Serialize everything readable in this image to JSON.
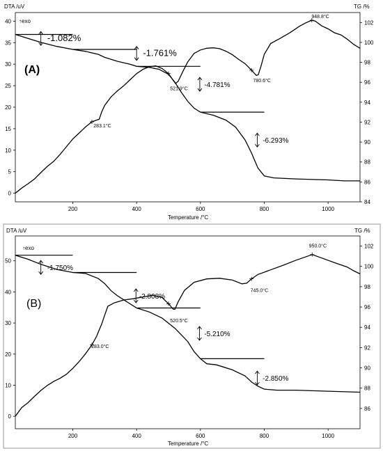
{
  "chart_data": [
    {
      "type": "line",
      "panel_label": "(A)",
      "exo_label": "↑exo",
      "left_axis_label": "DTA /uV",
      "right_axis_label": "TG /%",
      "xlabel": "Temperature /°C",
      "xlim": [
        20,
        1100
      ],
      "ylim_left": [
        -2,
        42
      ],
      "ylim_right": [
        84,
        103
      ],
      "xticks": [
        200,
        400,
        600,
        800,
        1000
      ],
      "yticks_left": [
        0,
        5,
        10,
        15,
        20,
        25,
        30,
        35,
        40
      ],
      "yticks_right": [
        84,
        86,
        88,
        90,
        92,
        94,
        96,
        98,
        100,
        102
      ],
      "series": [
        {
          "role": "DTA",
          "axis": "left",
          "points": [
            [
              20,
              0
            ],
            [
              40,
              1.2
            ],
            [
              60,
              2.2
            ],
            [
              80,
              3.3
            ],
            [
              100,
              4.8
            ],
            [
              120,
              6.2
            ],
            [
              140,
              7.4
            ],
            [
              160,
              9.0
            ],
            [
              180,
              10.8
            ],
            [
              200,
              12.6
            ],
            [
              220,
              14.0
            ],
            [
              240,
              15.4
            ],
            [
              260,
              16.6
            ],
            [
              275,
              17.0
            ],
            [
              283,
              17.2
            ],
            [
              290,
              18.8
            ],
            [
              300,
              20.4
            ],
            [
              320,
              22.4
            ],
            [
              340,
              23.8
            ],
            [
              360,
              25.0
            ],
            [
              380,
              26.4
            ],
            [
              400,
              27.8
            ],
            [
              420,
              28.8
            ],
            [
              440,
              29.4
            ],
            [
              460,
              29.6
            ],
            [
              480,
              29.0
            ],
            [
              500,
              27.8
            ],
            [
              515,
              26.2
            ],
            [
              522,
              25.5
            ],
            [
              530,
              26.0
            ],
            [
              545,
              28.3
            ],
            [
              560,
              30.5
            ],
            [
              580,
              32.5
            ],
            [
              600,
              33.3
            ],
            [
              620,
              33.7
            ],
            [
              640,
              33.8
            ],
            [
              660,
              33.6
            ],
            [
              680,
              33.0
            ],
            [
              700,
              32.2
            ],
            [
              720,
              31.1
            ],
            [
              740,
              30.1
            ],
            [
              760,
              28.6
            ],
            [
              775,
              27.4
            ],
            [
              781,
              27.5
            ],
            [
              790,
              29.6
            ],
            [
              800,
              32.3
            ],
            [
              820,
              34.8
            ],
            [
              850,
              36.0
            ],
            [
              880,
              37.3
            ],
            [
              910,
              38.8
            ],
            [
              930,
              39.6
            ],
            [
              949,
              40.2
            ],
            [
              960,
              40.0
            ],
            [
              980,
              38.9
            ],
            [
              1000,
              38.2
            ],
            [
              1020,
              37.3
            ],
            [
              1040,
              36.8
            ],
            [
              1060,
              35.8
            ],
            [
              1080,
              34.6
            ],
            [
              1100,
              33.7
            ]
          ]
        },
        {
          "role": "TG",
          "axis": "right",
          "points": [
            [
              20,
              100.8
            ],
            [
              60,
              100.4
            ],
            [
              100,
              100.0
            ],
            [
              150,
              99.6
            ],
            [
              200,
              99.3
            ],
            [
              240,
              99.1
            ],
            [
              280,
              98.8
            ],
            [
              300,
              98.5
            ],
            [
              340,
              98.1
            ],
            [
              380,
              97.8
            ],
            [
              400,
              97.6
            ],
            [
              440,
              97.5
            ],
            [
              470,
              97.3
            ],
            [
              500,
              96.8
            ],
            [
              520,
              96.0
            ],
            [
              540,
              95.0
            ],
            [
              560,
              94.1
            ],
            [
              580,
              93.4
            ],
            [
              600,
              93.0
            ],
            [
              640,
              92.7
            ],
            [
              680,
              92.2
            ],
            [
              710,
              91.5
            ],
            [
              740,
              90.2
            ],
            [
              760,
              88.9
            ],
            [
              780,
              87.4
            ],
            [
              800,
              86.6
            ],
            [
              830,
              86.4
            ],
            [
              900,
              86.3
            ],
            [
              1000,
              86.2
            ],
            [
              1050,
              86.1
            ],
            [
              1100,
              86.1
            ]
          ]
        }
      ],
      "tg_levels": [
        {
          "y": 100.8,
          "x1": 20,
          "x2": 200
        },
        {
          "y": 99.3,
          "x1": 200,
          "x2": 400
        },
        {
          "y": 97.6,
          "x1": 400,
          "x2": 600
        },
        {
          "y": 93.0,
          "x1": 600,
          "x2": 800
        }
      ],
      "mass_loss_labels": [
        {
          "text": "-1.082%",
          "x": 120,
          "y": 100.4,
          "arrow_x": 100
        },
        {
          "text": "-1.761%",
          "x": 420,
          "y": 98.9,
          "arrow_x": 400
        },
        {
          "text": "-4.781%",
          "x": 612,
          "y": 95.8,
          "arrow_x": 598
        },
        {
          "text": "-6.293%",
          "x": 795,
          "y": 90.2,
          "arrow_x": 778
        }
      ],
      "peak_labels": [
        {
          "text": "283.1°C",
          "x": 265,
          "y": 15.3
        },
        {
          "text": "521.9°C",
          "x": 505,
          "y": 24.0
        },
        {
          "text": "780.6°C",
          "x": 765,
          "y": 25.8
        },
        {
          "text": "948.8°C",
          "x": 948,
          "y": 40.7
        }
      ]
    },
    {
      "type": "line",
      "panel_label": "(B)",
      "exo_label": "↑exo",
      "left_axis_label": "DTA /uV",
      "right_axis_label": "TG /%",
      "xlabel": "Temperature /°C",
      "xlim": [
        20,
        1100
      ],
      "ylim_left": [
        -4,
        58
      ],
      "ylim_right": [
        84,
        103
      ],
      "xticks": [
        200,
        400,
        600,
        800,
        1000
      ],
      "yticks_left": [
        0,
        10,
        20,
        30,
        40,
        50
      ],
      "yticks_right": [
        86,
        88,
        90,
        92,
        94,
        96,
        98,
        100,
        102
      ],
      "series": [
        {
          "role": "DTA",
          "axis": "left",
          "points": [
            [
              20,
              0
            ],
            [
              40,
              2.8
            ],
            [
              60,
              4.4
            ],
            [
              80,
              6.4
            ],
            [
              100,
              8.3
            ],
            [
              120,
              9.9
            ],
            [
              140,
              11.2
            ],
            [
              160,
              12.2
            ],
            [
              180,
              13.5
            ],
            [
              200,
              15.4
            ],
            [
              220,
              17.6
            ],
            [
              240,
              20.1
            ],
            [
              260,
              23.0
            ],
            [
              275,
              25.8
            ],
            [
              283,
              27.8
            ],
            [
              290,
              29.5
            ],
            [
              300,
              32.5
            ],
            [
              310,
              35.4
            ],
            [
              330,
              36.5
            ],
            [
              360,
              37.4
            ],
            [
              390,
              37.8
            ],
            [
              420,
              38.4
            ],
            [
              450,
              38.9
            ],
            [
              480,
              38.2
            ],
            [
              500,
              36.2
            ],
            [
              515,
              34.4
            ],
            [
              520,
              34.4
            ],
            [
              530,
              36.8
            ],
            [
              550,
              40.5
            ],
            [
              580,
              43.1
            ],
            [
              620,
              44.2
            ],
            [
              660,
              44.4
            ],
            [
              700,
              43.8
            ],
            [
              730,
              42.6
            ],
            [
              745,
              42.8
            ],
            [
              760,
              44.2
            ],
            [
              780,
              45.6
            ],
            [
              820,
              47.1
            ],
            [
              860,
              48.6
            ],
            [
              900,
              50.2
            ],
            [
              950,
              52.0
            ],
            [
              980,
              50.9
            ],
            [
              1020,
              49.4
            ],
            [
              1060,
              48.0
            ],
            [
              1080,
              46.8
            ],
            [
              1100,
              45.8
            ]
          ]
        },
        {
          "role": "TG",
          "axis": "right",
          "points": [
            [
              20,
              101.1
            ],
            [
              60,
              100.7
            ],
            [
              100,
              100.2
            ],
            [
              150,
              99.7
            ],
            [
              200,
              99.4
            ],
            [
              240,
              99.3
            ],
            [
              280,
              98.8
            ],
            [
              300,
              98.3
            ],
            [
              320,
              97.6
            ],
            [
              340,
              97.1
            ],
            [
              380,
              96.3
            ],
            [
              400,
              95.9
            ],
            [
              440,
              95.5
            ],
            [
              480,
              94.9
            ],
            [
              520,
              93.9
            ],
            [
              560,
              92.6
            ],
            [
              580,
              91.6
            ],
            [
              600,
              90.9
            ],
            [
              620,
              90.4
            ],
            [
              650,
              90.3
            ],
            [
              700,
              89.8
            ],
            [
              740,
              89.2
            ],
            [
              760,
              88.6
            ],
            [
              780,
              88.2
            ],
            [
              800,
              87.9
            ],
            [
              840,
              87.8
            ],
            [
              900,
              87.8
            ],
            [
              1000,
              87.7
            ],
            [
              1100,
              87.6
            ]
          ]
        }
      ],
      "tg_levels": [
        {
          "y": 101.1,
          "x1": 20,
          "x2": 200
        },
        {
          "y": 99.4,
          "x1": 200,
          "x2": 400
        },
        {
          "y": 95.9,
          "x1": 400,
          "x2": 600
        },
        {
          "y": 90.9,
          "x1": 600,
          "x2": 800
        }
      ],
      "mass_loss_labels": [
        {
          "text": "-1.750%",
          "x": 120,
          "y": 99.9,
          "arrow_x": 100
        },
        {
          "text": "-2.808%",
          "x": 408,
          "y": 97.1,
          "arrow_x": 398
        },
        {
          "text": "-5.210%",
          "x": 612,
          "y": 93.4,
          "arrow_x": 597
        },
        {
          "text": "-2.850%",
          "x": 795,
          "y": 89.0,
          "arrow_x": 778
        }
      ],
      "peak_labels": [
        {
          "text": "283.0°C",
          "x": 258,
          "y": 22.0
        },
        {
          "text": "520.5°C",
          "x": 505,
          "y": 30.2
        },
        {
          "text": "745.0°C",
          "x": 757,
          "y": 40.0
        },
        {
          "text": "950.0°C",
          "x": 940,
          "y": 54.3
        }
      ]
    }
  ]
}
